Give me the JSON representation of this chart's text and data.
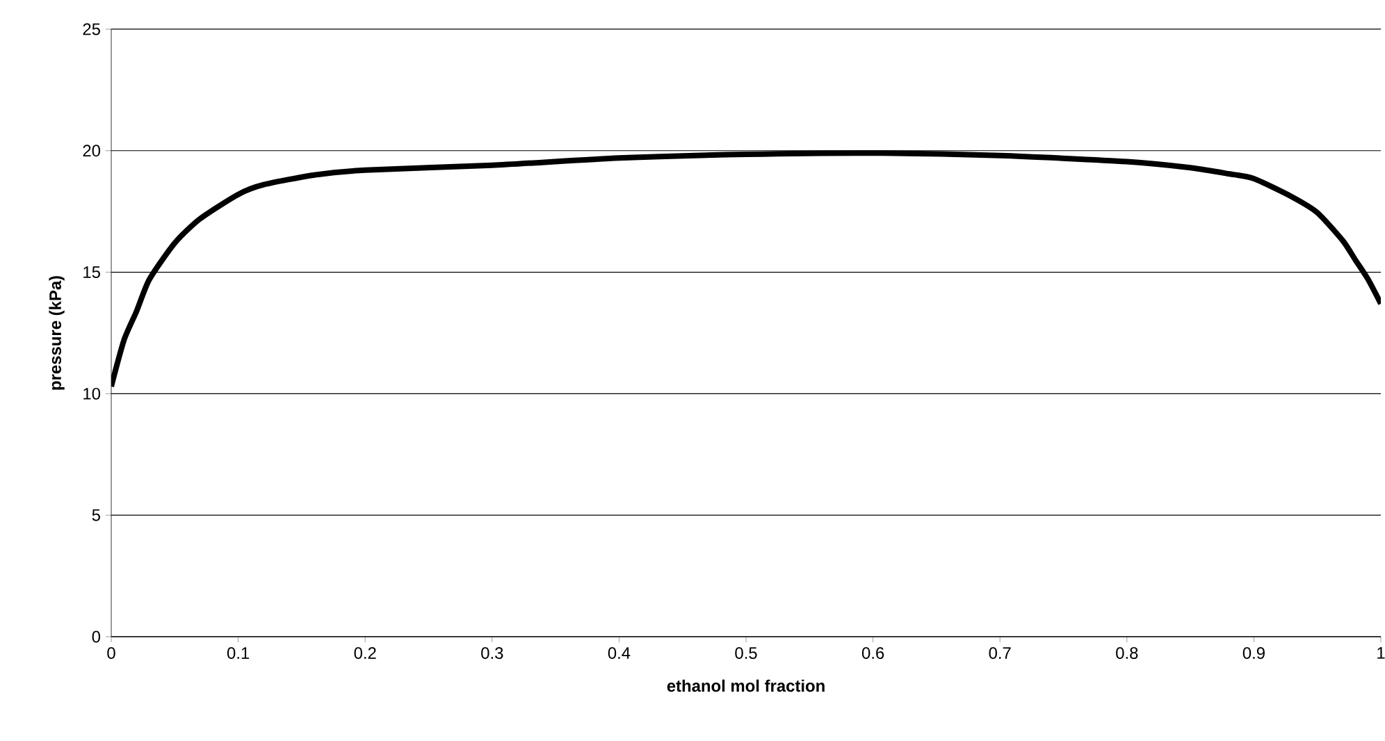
{
  "chart_data": {
    "type": "line",
    "xlabel": "ethanol mol fraction",
    "ylabel": "pressure (kPa)",
    "x": [
      0,
      0.01,
      0.02,
      0.03,
      0.05,
      0.07,
      0.1,
      0.12,
      0.16,
      0.2,
      0.3,
      0.4,
      0.5,
      0.6,
      0.7,
      0.8,
      0.85,
      0.88,
      0.9,
      0.93,
      0.95,
      0.97,
      0.98,
      0.99,
      1.0
    ],
    "series": [
      {
        "color": "#000000",
        "values": [
          10.3,
          12.2,
          13.4,
          14.7,
          16.2,
          17.2,
          18.2,
          18.6,
          19.0,
          19.2,
          19.4,
          19.7,
          19.85,
          19.9,
          19.8,
          19.55,
          19.3,
          19.05,
          18.85,
          18.1,
          17.45,
          16.3,
          15.5,
          14.7,
          13.7
        ]
      }
    ],
    "xlim": [
      0,
      1
    ],
    "ylim": [
      0,
      25
    ],
    "xticks": [
      0,
      0.1,
      0.2,
      0.3,
      0.4,
      0.5,
      0.6,
      0.7,
      0.8,
      0.9,
      1
    ],
    "yticks": [
      0,
      5,
      10,
      15,
      20,
      25
    ],
    "grid": "y",
    "marker": "none",
    "line_style": "solid"
  }
}
